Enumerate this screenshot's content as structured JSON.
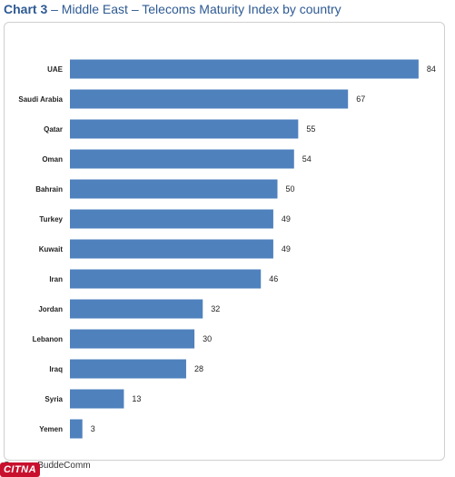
{
  "title": {
    "lead": "Chart 3",
    "rest": " – Middle East – Telecoms Maturity Index by country"
  },
  "source": "Source: BuddeComm",
  "watermark": "CITNA",
  "chart_data": {
    "type": "bar",
    "orientation": "horizontal",
    "title": "Chart 3 – Middle East – Telecoms Maturity Index by country",
    "xlabel": "",
    "ylabel": "",
    "xlim": [
      0,
      90
    ],
    "grid": false,
    "legend": "none",
    "bar_color": "#4f81bd",
    "categories": [
      "UAE",
      "Saudi Arabia",
      "Qatar",
      "Oman",
      "Bahrain",
      "Turkey",
      "Kuwait",
      "Iran",
      "Jordan",
      "Lebanon",
      "Iraq",
      "Syria",
      "Yemen"
    ],
    "values": [
      84,
      67,
      55,
      54,
      50,
      49,
      49,
      46,
      32,
      30,
      28,
      13,
      3
    ]
  }
}
